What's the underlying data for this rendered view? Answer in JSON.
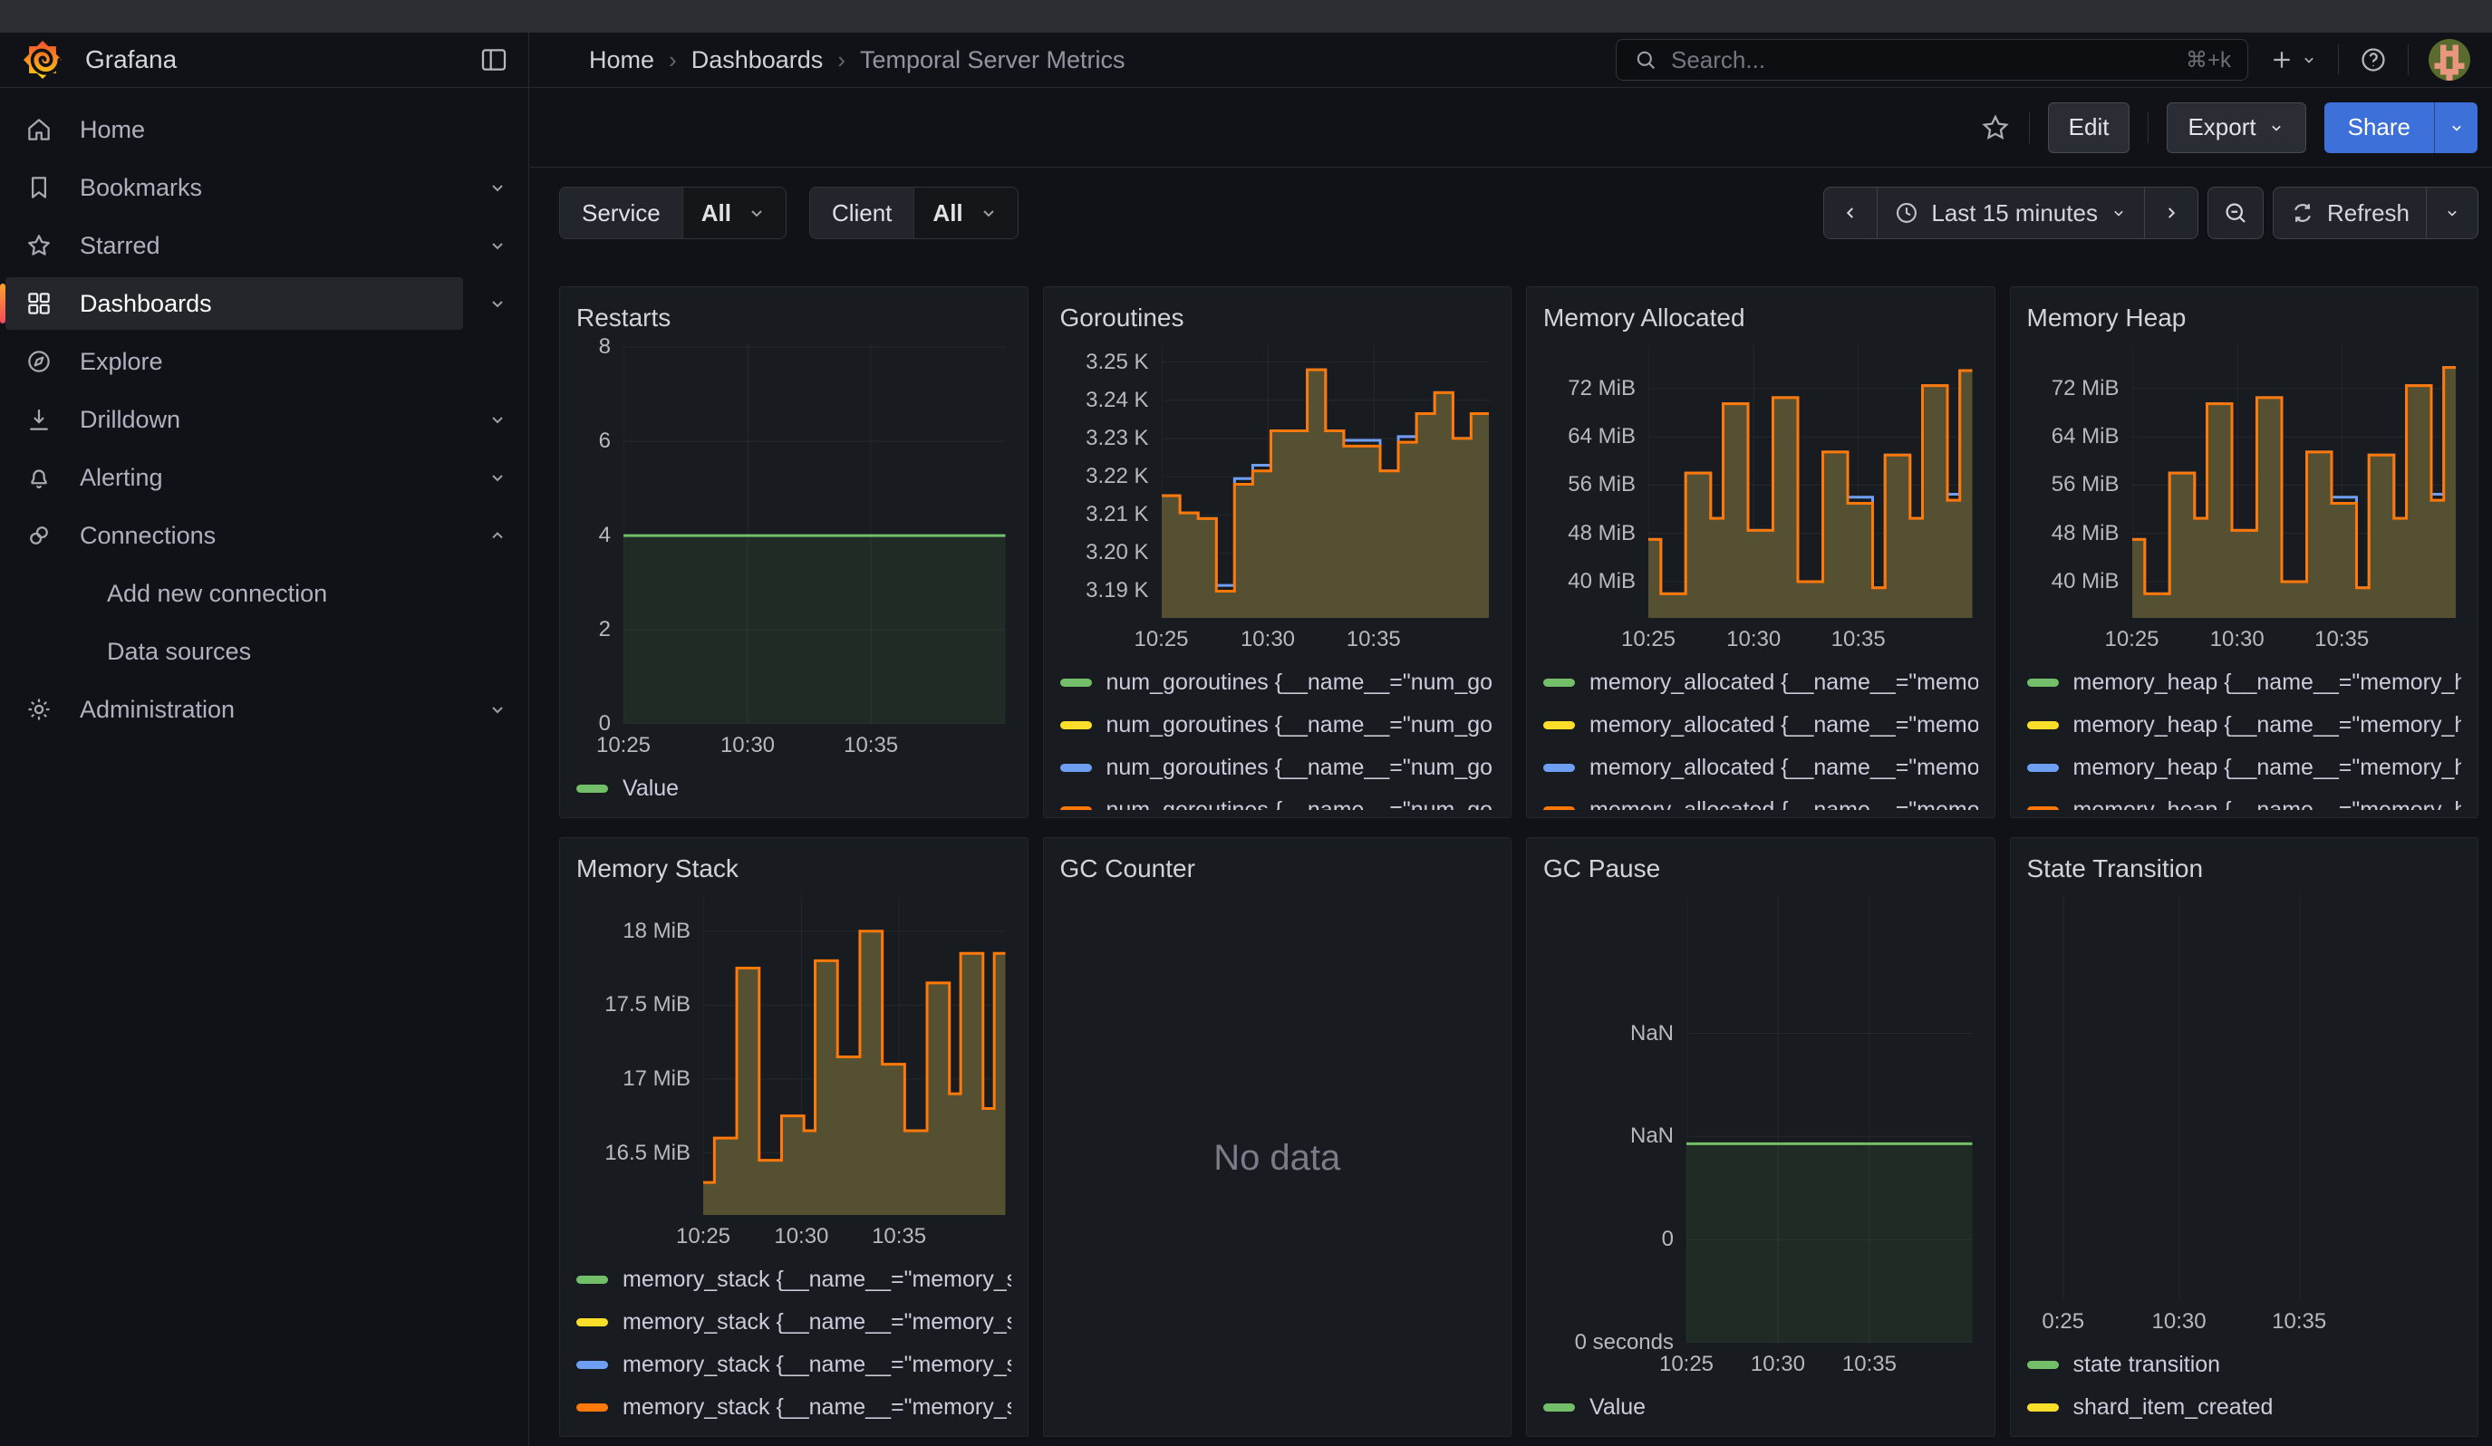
{
  "nav": {
    "brand": "Grafana",
    "breadcrumbs": [
      "Home",
      "Dashboards",
      "Temporal Server Metrics"
    ],
    "search": {
      "placeholder": "Search...",
      "shortcut": "⌘+k"
    }
  },
  "toolbar": {
    "edit_label": "Edit",
    "export_label": "Export",
    "share_label": "Share"
  },
  "sidebar": {
    "items": [
      {
        "label": "Home",
        "icon": "home"
      },
      {
        "label": "Bookmarks",
        "icon": "bookmark",
        "chevron": "down"
      },
      {
        "label": "Starred",
        "icon": "star",
        "chevron": "down"
      },
      {
        "label": "Dashboards",
        "icon": "grid",
        "chevron": "down",
        "active": true
      },
      {
        "label": "Explore",
        "icon": "compass"
      },
      {
        "label": "Drilldown",
        "icon": "drilldown",
        "chevron": "down"
      },
      {
        "label": "Alerting",
        "icon": "bell",
        "chevron": "down"
      },
      {
        "label": "Connections",
        "icon": "connections",
        "chevron": "up"
      },
      {
        "label": "Add new connection",
        "child": true
      },
      {
        "label": "Data sources",
        "child": true
      },
      {
        "label": "Administration",
        "icon": "gear",
        "chevron": "down"
      }
    ]
  },
  "filters": [
    {
      "label": "Service",
      "value": "All"
    },
    {
      "label": "Client",
      "value": "All"
    }
  ],
  "timepicker": {
    "range_label": "Last 15 minutes",
    "refresh_label": "Refresh"
  },
  "colors": {
    "green": "#73bf69",
    "yellow": "#fade2a",
    "blue": "#6f9ff3",
    "orange": "#ff780a",
    "area_olive": "#555031",
    "accent_blue": "#3d71d9"
  },
  "panels": [
    {
      "title": "Restarts",
      "kind": "timeseries",
      "gutter": 52,
      "ylim": [
        0,
        8.08
      ],
      "y_ticks": [
        {
          "v": 0,
          "label": "0"
        },
        {
          "v": 2,
          "label": "2"
        },
        {
          "v": 4,
          "label": "4"
        },
        {
          "v": 6,
          "label": "6"
        },
        {
          "v": 8,
          "label": "8"
        }
      ],
      "x_ticks": [
        {
          "f": 0,
          "label": "10:25"
        },
        {
          "f": 0.325,
          "label": "10:30"
        },
        {
          "f": 0.648,
          "label": "10:35"
        }
      ],
      "series": [
        {
          "color": "#73bf69",
          "width": 3,
          "fill": "rgba(115,191,105,0.10)",
          "values": [
            4,
            4
          ]
        }
      ],
      "legend": [
        {
          "color": "#73bf69",
          "label": "Value"
        }
      ]
    },
    {
      "title": "Goroutines",
      "kind": "timeseries",
      "gutter": 112,
      "ylim": [
        3.183,
        3.2549
      ],
      "y_ticks": [
        {
          "v": 3.19,
          "label": "3.19 K"
        },
        {
          "v": 3.2,
          "label": "3.20 K"
        },
        {
          "v": 3.21,
          "label": "3.21 K"
        },
        {
          "v": 3.22,
          "label": "3.22 K"
        },
        {
          "v": 3.23,
          "label": "3.23 K"
        },
        {
          "v": 3.24,
          "label": "3.24 K"
        },
        {
          "v": 3.25,
          "label": "3.25 K"
        }
      ],
      "x_ticks": [
        {
          "f": 0,
          "label": "10:25"
        },
        {
          "f": 0.325,
          "label": "10:30"
        },
        {
          "f": 0.648,
          "label": "10:35"
        }
      ],
      "series": [
        {
          "color": "#6f9ff3",
          "width": 3,
          "values": [
            3.215,
            3.2105,
            3.209,
            3.1915,
            3.2195,
            3.223,
            3.232,
            3.232,
            3.248,
            3.232,
            3.2295,
            3.2295,
            3.2215,
            3.2305,
            3.2365,
            3.242,
            3.23,
            3.2365
          ]
        },
        {
          "color": "#ff780a",
          "width": 3,
          "fill": "#555031",
          "values": [
            3.215,
            3.2105,
            3.209,
            3.19,
            3.218,
            3.2215,
            3.232,
            3.232,
            3.248,
            3.232,
            3.228,
            3.228,
            3.2215,
            3.229,
            3.2365,
            3.242,
            3.23,
            3.2365
          ]
        }
      ],
      "legend_clip": true,
      "legend": [
        {
          "color": "#73bf69",
          "label": "num_goroutines {__name__=\"num_go"
        },
        {
          "color": "#fade2a",
          "label": "num_goroutines {__name__=\"num_go"
        },
        {
          "color": "#6f9ff3",
          "label": "num_goroutines {__name__=\"num_go"
        },
        {
          "color": "#ff780a",
          "label": "num_goroutines {__name__=\"num_go"
        }
      ]
    },
    {
      "title": "Memory Allocated",
      "kind": "timeseries",
      "gutter": 116,
      "ylim": [
        34,
        79.5
      ],
      "y_ticks": [
        {
          "v": 40,
          "label": "40 MiB"
        },
        {
          "v": 48,
          "label": "48 MiB"
        },
        {
          "v": 56,
          "label": "56 MiB"
        },
        {
          "v": 64,
          "label": "64 MiB"
        },
        {
          "v": 72,
          "label": "72 MiB"
        }
      ],
      "x_ticks": [
        {
          "f": 0,
          "label": "10:25"
        },
        {
          "f": 0.325,
          "label": "10:30"
        },
        {
          "f": 0.648,
          "label": "10:35"
        }
      ],
      "series": [
        {
          "color": "#6f9ff3",
          "width": 3,
          "values": [
            47,
            38,
            38,
            58,
            58,
            50.5,
            69.5,
            69.5,
            48.5,
            48.5,
            70.5,
            70.5,
            40,
            40,
            61.5,
            61.5,
            54,
            54,
            39,
            61,
            61,
            50.5,
            72.5,
            72.5,
            54.5,
            75
          ]
        },
        {
          "color": "#ff780a",
          "width": 3,
          "fill": "#555031",
          "values": [
            47,
            38,
            38,
            58,
            58,
            50.5,
            69.5,
            69.5,
            48.5,
            48.5,
            70.5,
            70.5,
            40,
            40,
            61.5,
            61.5,
            53,
            53,
            39,
            61,
            61,
            50.5,
            72.5,
            72.5,
            53.5,
            75
          ]
        }
      ],
      "legend_clip": true,
      "legend": [
        {
          "color": "#73bf69",
          "label": "memory_allocated {__name__=\"memo"
        },
        {
          "color": "#fade2a",
          "label": "memory_allocated {__name__=\"memo"
        },
        {
          "color": "#6f9ff3",
          "label": "memory_allocated {__name__=\"memo"
        },
        {
          "color": "#ff780a",
          "label": "memory_allocated {__name__=\"memo"
        }
      ]
    },
    {
      "title": "Memory Heap",
      "kind": "timeseries",
      "gutter": 116,
      "ylim": [
        34,
        79.5
      ],
      "y_ticks": [
        {
          "v": 40,
          "label": "40 MiB"
        },
        {
          "v": 48,
          "label": "48 MiB"
        },
        {
          "v": 56,
          "label": "56 MiB"
        },
        {
          "v": 64,
          "label": "64 MiB"
        },
        {
          "v": 72,
          "label": "72 MiB"
        }
      ],
      "x_ticks": [
        {
          "f": 0,
          "label": "10:25"
        },
        {
          "f": 0.325,
          "label": "10:30"
        },
        {
          "f": 0.648,
          "label": "10:35"
        }
      ],
      "series": [
        {
          "color": "#6f9ff3",
          "width": 3,
          "values": [
            47,
            38,
            38,
            58,
            58,
            50.5,
            69.5,
            69.5,
            48.5,
            48.5,
            70.5,
            70.5,
            40,
            40,
            61.5,
            61.5,
            54,
            54,
            39,
            61,
            61,
            50.5,
            72.5,
            72.5,
            54.5,
            75.5
          ]
        },
        {
          "color": "#ff780a",
          "width": 3,
          "fill": "#555031",
          "values": [
            47,
            38,
            38,
            58,
            58,
            50.5,
            69.5,
            69.5,
            48.5,
            48.5,
            70.5,
            70.5,
            40,
            40,
            61.5,
            61.5,
            53,
            53,
            39,
            61,
            61,
            50.5,
            72.5,
            72.5,
            53.5,
            75.5
          ]
        }
      ],
      "legend_clip": true,
      "legend": [
        {
          "color": "#73bf69",
          "label": "memory_heap {__name__=\"memory_h"
        },
        {
          "color": "#fade2a",
          "label": "memory_heap {__name__=\"memory_h"
        },
        {
          "color": "#6f9ff3",
          "label": "memory_heap {__name__=\"memory_h"
        },
        {
          "color": "#ff780a",
          "label": "memory_heap {__name__=\"memory_h"
        }
      ]
    },
    {
      "title": "Memory Stack",
      "kind": "timeseries",
      "gutter": 140,
      "ylim": [
        16.08,
        18.25
      ],
      "y_ticks": [
        {
          "v": 16.5,
          "label": "16.5 MiB"
        },
        {
          "v": 17,
          "label": "17 MiB"
        },
        {
          "v": 17.5,
          "label": "17.5 MiB"
        },
        {
          "v": 18,
          "label": "18 MiB"
        }
      ],
      "x_ticks": [
        {
          "f": 0,
          "label": "10:25"
        },
        {
          "f": 0.325,
          "label": "10:30"
        },
        {
          "f": 0.648,
          "label": "10:35"
        }
      ],
      "series": [
        {
          "color": "#ff780a",
          "width": 3,
          "fill": "#555031",
          "values": [
            16.3,
            16.6,
            16.6,
            17.75,
            17.75,
            16.45,
            16.45,
            16.75,
            16.75,
            16.65,
            17.8,
            17.8,
            17.15,
            17.15,
            18.0,
            18.0,
            17.1,
            17.1,
            16.65,
            16.65,
            17.65,
            17.65,
            16.9,
            17.85,
            17.85,
            16.8,
            17.85
          ]
        }
      ],
      "legend": [
        {
          "color": "#73bf69",
          "label": "memory_stack {__name__=\"memory_s"
        },
        {
          "color": "#fade2a",
          "label": "memory_stack {__name__=\"memory_s"
        },
        {
          "color": "#6f9ff3",
          "label": "memory_stack {__name__=\"memory_s"
        },
        {
          "color": "#ff780a",
          "label": "memory_stack {__name__=\"memory_s"
        }
      ]
    },
    {
      "title": "GC Counter",
      "kind": "nodata",
      "nodata": "No data"
    },
    {
      "title": "GC Pause",
      "kind": "timeseries",
      "gutter": 158,
      "ylim": [
        0,
        4.35
      ],
      "y_ticks": [
        {
          "v": 0,
          "label": "0 seconds"
        },
        {
          "v": 1,
          "label": "0"
        },
        {
          "v": 2,
          "label": "NaN"
        },
        {
          "v": 3,
          "label": "NaN"
        }
      ],
      "x_ticks": [
        {
          "f": 0,
          "label": "10:25"
        },
        {
          "f": 0.32,
          "label": "10:30"
        },
        {
          "f": 0.64,
          "label": "10:35"
        }
      ],
      "series": [
        {
          "color": "#73bf69",
          "width": 3,
          "fill": "rgba(115,191,105,0.10)",
          "values": [
            1.93,
            1.93
          ]
        }
      ],
      "legend": [
        {
          "color": "#73bf69",
          "label": "Value"
        }
      ]
    },
    {
      "title": "State Transition",
      "kind": "timeseries",
      "gutter": 0,
      "ylim": [
        0,
        1
      ],
      "y_ticks": [],
      "x_ticks": [
        {
          "f": 0.085,
          "label": "0:25"
        },
        {
          "f": 0.355,
          "label": "10:30"
        },
        {
          "f": 0.635,
          "label": "10:35"
        }
      ],
      "series": [],
      "legend": [
        {
          "color": "#73bf69",
          "label": "state transition"
        },
        {
          "color": "#fade2a",
          "label": "shard_item_created"
        }
      ]
    }
  ]
}
